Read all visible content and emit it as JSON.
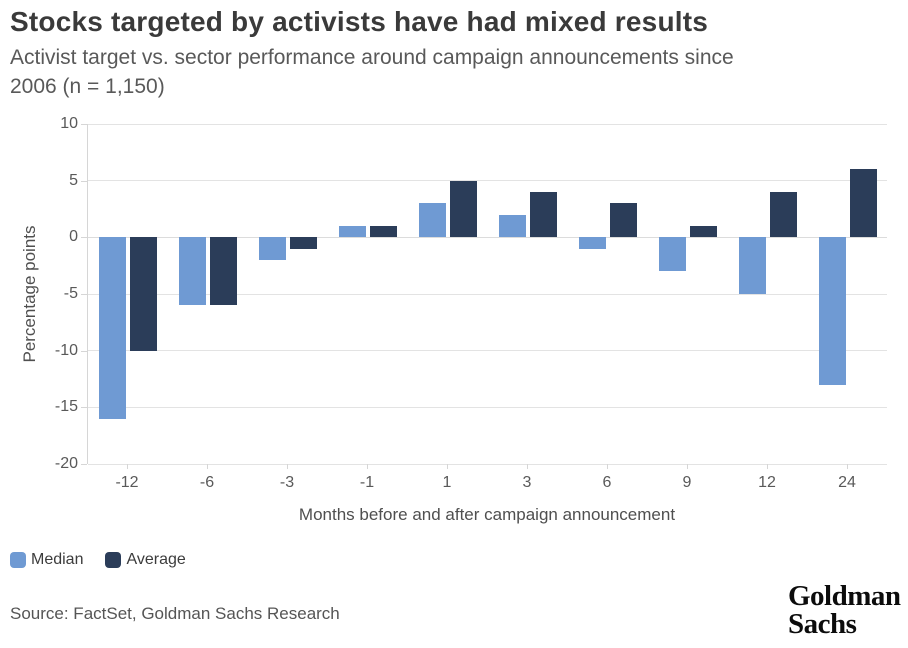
{
  "header": {
    "title": "Stocks targeted by activists have had mixed results",
    "subtitle_line1": "Activist target vs. sector performance around campaign announcements since",
    "subtitle_line2": "2006 (n = 1,150)"
  },
  "chart_data": {
    "type": "bar",
    "title": "Stocks targeted by activists have had mixed results",
    "subtitle": "Activist target vs. sector performance around campaign announcements since 2006 (n = 1,150)",
    "categories": [
      "-12",
      "-6",
      "-3",
      "-1",
      "1",
      "3",
      "6",
      "9",
      "12",
      "24"
    ],
    "series": [
      {
        "name": "Median",
        "color": "#6F9AD3",
        "values": [
          -16,
          -6,
          -2,
          1,
          3,
          2,
          -1,
          -3,
          -5,
          -13
        ]
      },
      {
        "name": "Average",
        "color": "#2B3D59",
        "values": [
          -10,
          -6,
          -1,
          1,
          5,
          4,
          3,
          1,
          4,
          6
        ]
      }
    ],
    "xlabel": "Months before and after campaign announcement",
    "ylabel": "Percentage points",
    "ylim": [
      -20,
      10
    ],
    "yticks": [
      10,
      5,
      0,
      -5,
      -10,
      -15,
      -20
    ],
    "grid": true,
    "legend_position": "bottom-left"
  },
  "footer": {
    "source": "Source: FactSet, Goldman Sachs Research",
    "logo_line1": "Goldman",
    "logo_line2": "Sachs"
  },
  "colors": {
    "median_bar": "#6F9AD3",
    "average_bar": "#2B3D59",
    "gridline": "#e3e3e3",
    "title_text": "#3a3a3a",
    "subtitle_text": "#595959",
    "background": "#ffffff"
  }
}
